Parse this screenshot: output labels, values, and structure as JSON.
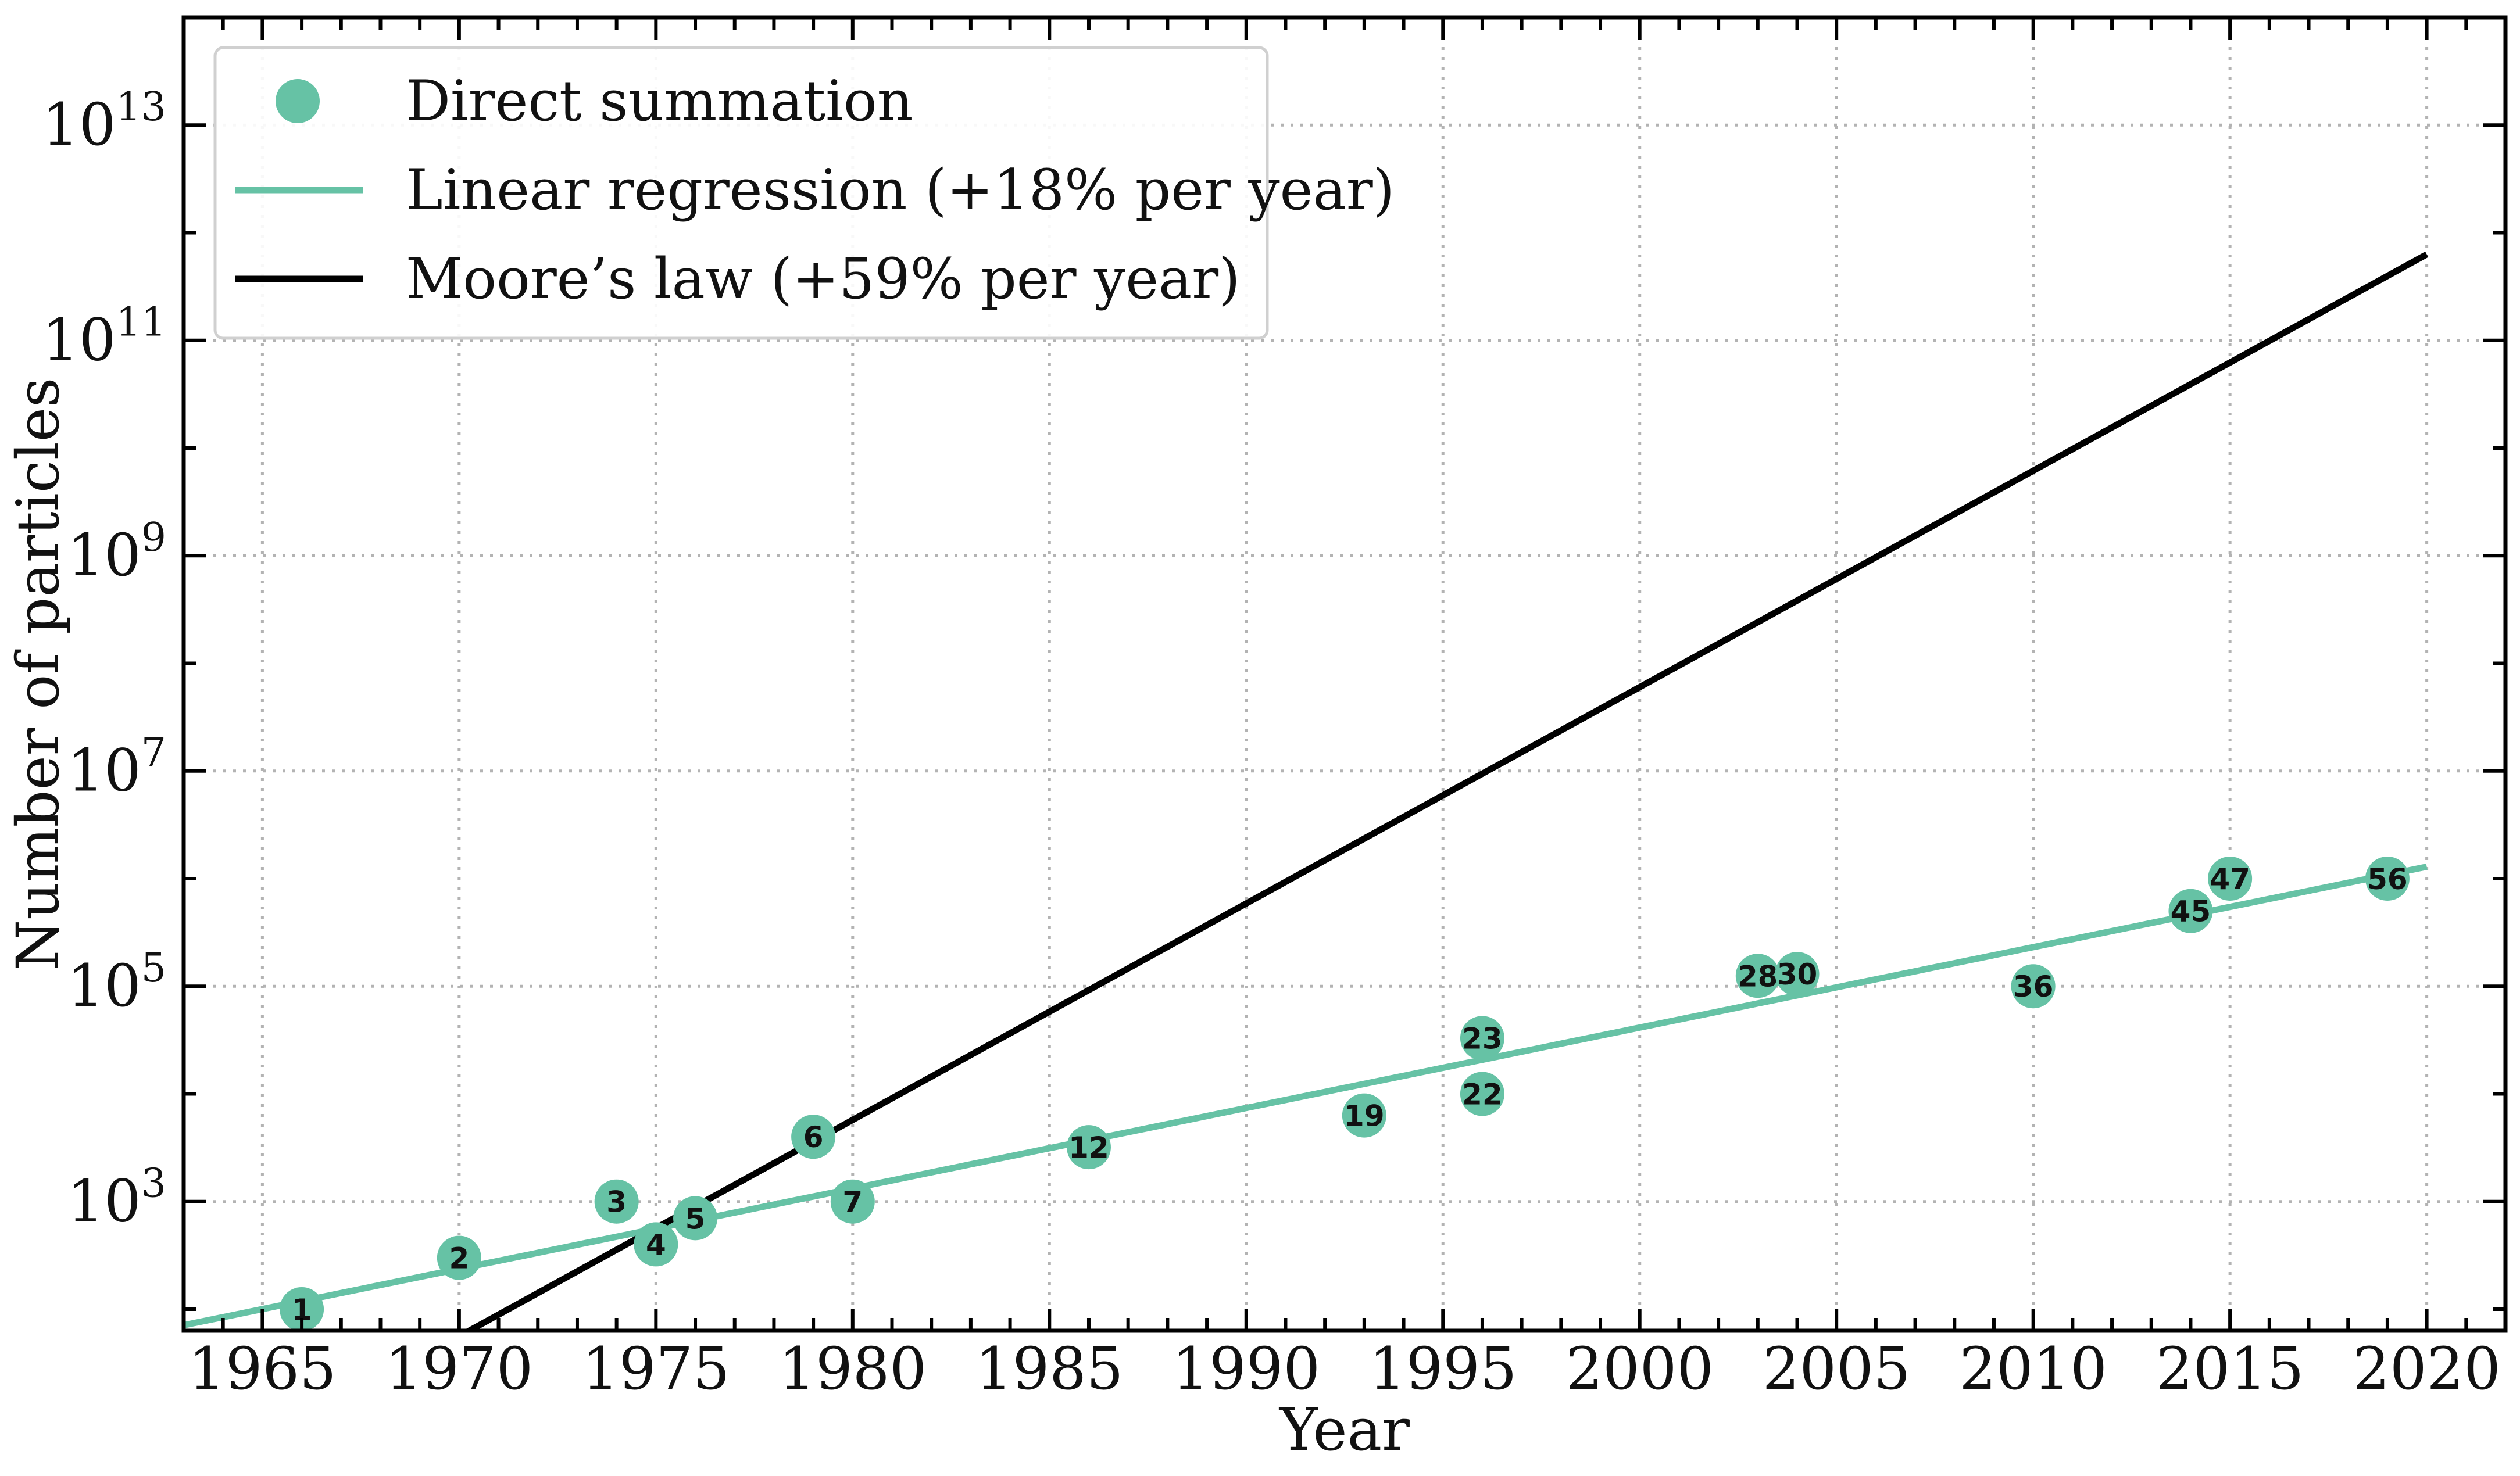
{
  "chart_data": {
    "type": "scatter",
    "xlabel": "Year",
    "ylabel": "Number of particles",
    "xlim": [
      1963,
      2022
    ],
    "ylim_log10": [
      1.8,
      14.0
    ],
    "yscale": "log",
    "grid": true,
    "legend_position": "top-left",
    "x_ticks": [
      1965,
      1970,
      1975,
      1980,
      1985,
      1990,
      1995,
      2000,
      2005,
      2010,
      2015,
      2020
    ],
    "x_tick_labels": [
      "1965",
      "1970",
      "1975",
      "1980",
      "1985",
      "1990",
      "1995",
      "2000",
      "2005",
      "2010",
      "2015",
      "2020"
    ],
    "y_ticks_log10": [
      3,
      5,
      7,
      9,
      11,
      13
    ],
    "y_tick_labels": [
      {
        "base": "10",
        "exp": "3"
      },
      {
        "base": "10",
        "exp": "5"
      },
      {
        "base": "10",
        "exp": "7"
      },
      {
        "base": "10",
        "exp": "9"
      },
      {
        "base": "10",
        "exp": "11"
      },
      {
        "base": "10",
        "exp": "13"
      }
    ],
    "series": [
      {
        "name": "Direct summation",
        "kind": "scatter",
        "color": "#66c2a5",
        "points": [
          {
            "label": "1",
            "year": 1966,
            "n": 100
          },
          {
            "label": "2",
            "year": 1970,
            "n": 300
          },
          {
            "label": "3",
            "year": 1974,
            "n": 1000
          },
          {
            "label": "4",
            "year": 1975,
            "n": 400
          },
          {
            "label": "5",
            "year": 1976,
            "n": 700
          },
          {
            "label": "6",
            "year": 1979,
            "n": 4000
          },
          {
            "label": "7",
            "year": 1980,
            "n": 1000
          },
          {
            "label": "12",
            "year": 1986,
            "n": 3200
          },
          {
            "label": "19",
            "year": 1993,
            "n": 6300
          },
          {
            "label": "22",
            "year": 1996,
            "n": 10000
          },
          {
            "label": "23",
            "year": 1996,
            "n": 33000
          },
          {
            "label": "28",
            "year": 2003,
            "n": 125000
          },
          {
            "label": "30",
            "year": 2004,
            "n": 130000
          },
          {
            "label": "36",
            "year": 2010,
            "n": 100000
          },
          {
            "label": "45",
            "year": 2014,
            "n": 500000
          },
          {
            "label": "47",
            "year": 2015,
            "n": 1000000
          },
          {
            "label": "56",
            "year": 2019,
            "n": 1000000
          }
        ]
      },
      {
        "name": "Linear regression (+18% per year)",
        "kind": "line",
        "color": "#66c2a5",
        "x": [
          1963,
          2020
        ],
        "y": [
          71,
          1290000
        ]
      },
      {
        "name": "Moore’s law (+59% per year)",
        "kind": "line",
        "color": "#000000",
        "x": [
          1970,
          2020
        ],
        "y": [
          56,
          630000000000
        ]
      }
    ]
  }
}
